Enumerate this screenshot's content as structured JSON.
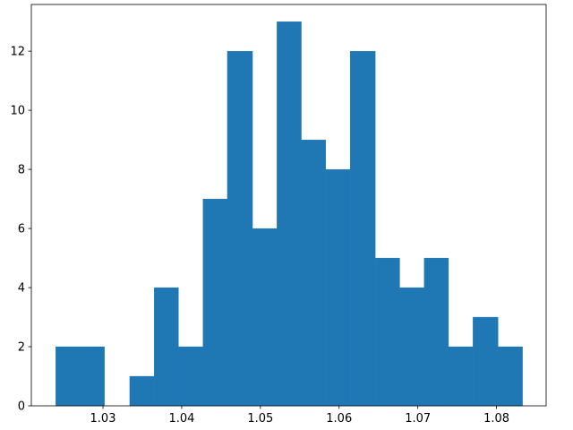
{
  "chart_data": {
    "type": "histogram",
    "bins": [
      1.024,
      1.0271,
      1.0302,
      1.0334,
      1.0365,
      1.0396,
      1.0427,
      1.0458,
      1.049,
      1.0521,
      1.0552,
      1.0583,
      1.0614,
      1.0646,
      1.0677,
      1.0708,
      1.0739,
      1.077,
      1.0802,
      1.0833
    ],
    "values": [
      2,
      2,
      0,
      1,
      4,
      2,
      7,
      12,
      6,
      13,
      9,
      8,
      12,
      5,
      4,
      5,
      2,
      3,
      2
    ],
    "color": "#1f77b4",
    "xlim": [
      1.0209,
      1.0863
    ],
    "xticks": [
      {
        "value": 1.03,
        "label": "1.03"
      },
      {
        "value": 1.04,
        "label": "1.04"
      },
      {
        "value": 1.05,
        "label": "1.05"
      },
      {
        "value": 1.06,
        "label": "1.06"
      },
      {
        "value": 1.07,
        "label": "1.07"
      },
      {
        "value": 1.08,
        "label": "1.08"
      }
    ],
    "ylim": [
      0,
      13.58
    ],
    "yticks": [
      0,
      2,
      4,
      6,
      8,
      10,
      12
    ]
  }
}
